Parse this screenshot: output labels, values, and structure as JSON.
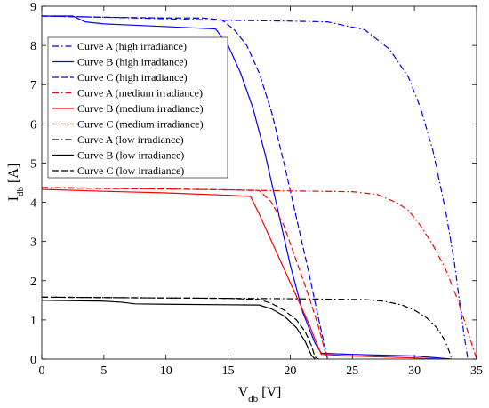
{
  "chart_data": {
    "type": "line",
    "title": "",
    "xlabel": "V",
    "xlabel_sub": "db",
    "xlabel_unit": "[V]",
    "ylabel": "I",
    "ylabel_sub": "db",
    "ylabel_unit": "[A]",
    "xlim": [
      0,
      35
    ],
    "ylim": [
      0,
      9
    ],
    "xticks": [
      0,
      5,
      10,
      15,
      20,
      25,
      30,
      35
    ],
    "yticks": [
      0,
      1,
      2,
      3,
      4,
      5,
      6,
      7,
      8,
      9
    ],
    "grid": false,
    "legend_position": "top-left",
    "series": [
      {
        "name": "Curve A (high irradiance)",
        "color": "#0000ff",
        "style": "dashdot",
        "points": [
          [
            0,
            8.75
          ],
          [
            5,
            8.72
          ],
          [
            10,
            8.68
          ],
          [
            15,
            8.64
          ],
          [
            20,
            8.62
          ],
          [
            23,
            8.6
          ],
          [
            26,
            8.4
          ],
          [
            28,
            7.9
          ],
          [
            29.5,
            7.2
          ],
          [
            30.5,
            6.4
          ],
          [
            31.5,
            5.3
          ],
          [
            32.5,
            3.8
          ],
          [
            33.2,
            2.5
          ],
          [
            33.7,
            1.3
          ],
          [
            34,
            0.6
          ],
          [
            34.3,
            0
          ]
        ]
      },
      {
        "name": "Curve B (high irradiance)",
        "color": "#0000ff",
        "style": "solid",
        "points": [
          [
            0,
            8.75
          ],
          [
            2.5,
            8.75
          ],
          [
            3.5,
            8.6
          ],
          [
            5,
            8.55
          ],
          [
            10,
            8.48
          ],
          [
            14,
            8.42
          ],
          [
            15,
            8.0
          ],
          [
            16,
            7.3
          ],
          [
            17,
            6.4
          ],
          [
            18,
            5.2
          ],
          [
            19,
            3.8
          ],
          [
            20,
            2.4
          ],
          [
            21,
            1.2
          ],
          [
            22,
            0.4
          ],
          [
            22.5,
            0.15
          ],
          [
            25,
            0.12
          ],
          [
            30,
            0.08
          ],
          [
            33,
            0
          ]
        ]
      },
      {
        "name": "Curve C (high irradiance)",
        "color": "#0000ff",
        "style": "dashed",
        "points": [
          [
            0,
            8.75
          ],
          [
            5,
            8.72
          ],
          [
            10,
            8.7
          ],
          [
            13,
            8.7
          ],
          [
            14.5,
            8.65
          ],
          [
            15.5,
            8.4
          ],
          [
            16.5,
            8.0
          ],
          [
            17.5,
            7.3
          ],
          [
            18.5,
            6.3
          ],
          [
            19.5,
            5.0
          ],
          [
            20.5,
            3.6
          ],
          [
            21.5,
            2.2
          ],
          [
            22.3,
            1.0
          ],
          [
            22.8,
            0.3
          ],
          [
            23,
            0
          ]
        ]
      },
      {
        "name": "Curve A (medium irradiance)",
        "color": "#ff0000",
        "style": "dashdot",
        "points": [
          [
            0,
            4.38
          ],
          [
            10,
            4.34
          ],
          [
            20,
            4.29
          ],
          [
            25,
            4.27
          ],
          [
            27,
            4.2
          ],
          [
            28.5,
            4.0
          ],
          [
            29.5,
            3.8
          ],
          [
            30.5,
            3.4
          ],
          [
            31.5,
            2.9
          ],
          [
            32.5,
            2.3
          ],
          [
            33.5,
            1.5
          ],
          [
            34.2,
            0.8
          ],
          [
            34.7,
            0.3
          ],
          [
            35,
            0
          ]
        ]
      },
      {
        "name": "Curve B (medium irradiance)",
        "color": "#ff0000",
        "style": "solid",
        "points": [
          [
            0,
            4.33
          ],
          [
            5,
            4.28
          ],
          [
            10,
            4.24
          ],
          [
            15,
            4.18
          ],
          [
            16.8,
            4.15
          ],
          [
            17.5,
            3.7
          ],
          [
            18.5,
            3.0
          ],
          [
            19.5,
            2.3
          ],
          [
            20.5,
            1.6
          ],
          [
            21.5,
            0.9
          ],
          [
            22,
            0.5
          ],
          [
            22.5,
            0.12
          ],
          [
            25,
            0.08
          ],
          [
            30,
            0.03
          ],
          [
            32,
            0
          ]
        ]
      },
      {
        "name": "Curve C (medium irradiance)",
        "color": "#ff0000",
        "style": "dashed",
        "points": [
          [
            0,
            4.37
          ],
          [
            5,
            4.35
          ],
          [
            10,
            4.34
          ],
          [
            15,
            4.32
          ],
          [
            17.5,
            4.3
          ],
          [
            18.5,
            4.0
          ],
          [
            19.5,
            3.4
          ],
          [
            20.5,
            2.5
          ],
          [
            21.5,
            1.6
          ],
          [
            22.3,
            0.8
          ],
          [
            22.8,
            0.2
          ],
          [
            23,
            0
          ]
        ]
      },
      {
        "name": "Curve A (low irradiance)",
        "color": "#000000",
        "style": "dashdot",
        "points": [
          [
            0,
            1.58
          ],
          [
            10,
            1.56
          ],
          [
            20,
            1.54
          ],
          [
            26,
            1.52
          ],
          [
            27.5,
            1.48
          ],
          [
            29,
            1.38
          ],
          [
            30,
            1.25
          ],
          [
            31,
            1.05
          ],
          [
            31.8,
            0.8
          ],
          [
            32.4,
            0.5
          ],
          [
            32.8,
            0.2
          ],
          [
            33,
            0
          ]
        ]
      },
      {
        "name": "Curve B (low irradiance)",
        "color": "#000000",
        "style": "solid",
        "points": [
          [
            0,
            1.5
          ],
          [
            5,
            1.48
          ],
          [
            6.5,
            1.45
          ],
          [
            7.5,
            1.41
          ],
          [
            10,
            1.4
          ],
          [
            17.5,
            1.38
          ],
          [
            18.5,
            1.28
          ],
          [
            19.5,
            1.1
          ],
          [
            20.5,
            0.8
          ],
          [
            21.2,
            0.45
          ],
          [
            21.7,
            0.1
          ],
          [
            22,
            0
          ]
        ]
      },
      {
        "name": "Curve C (low irradiance)",
        "color": "#000000",
        "style": "dashed",
        "points": [
          [
            0,
            1.58
          ],
          [
            5,
            1.57
          ],
          [
            10,
            1.56
          ],
          [
            15,
            1.55
          ],
          [
            17.5,
            1.52
          ],
          [
            18.5,
            1.42
          ],
          [
            19.5,
            1.25
          ],
          [
            20.5,
            1.0
          ],
          [
            21.2,
            0.7
          ],
          [
            21.7,
            0.35
          ],
          [
            22,
            0.05
          ],
          [
            22.3,
            0
          ]
        ]
      }
    ]
  }
}
